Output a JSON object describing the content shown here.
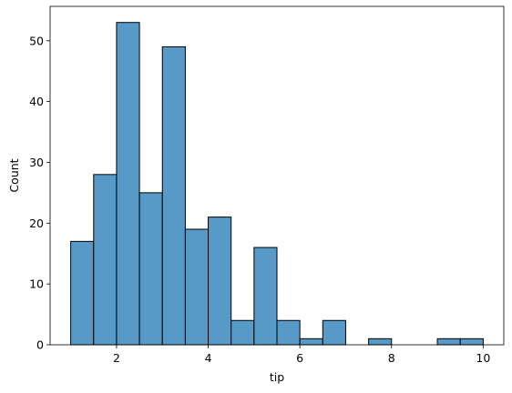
{
  "chart_data": {
    "type": "bar",
    "subtype": "histogram",
    "title": "",
    "xlabel": "tip",
    "ylabel": "Count",
    "xlim": [
      0.55,
      10.45
    ],
    "ylim": [
      0,
      55.65
    ],
    "xticks": [
      2,
      4,
      6,
      8,
      10
    ],
    "yticks": [
      0,
      10,
      20,
      30,
      40,
      50
    ],
    "bin_edges": [
      1.0,
      1.5,
      2.0,
      2.5,
      3.0,
      3.5,
      4.0,
      4.5,
      5.0,
      5.5,
      6.0,
      6.5,
      7.0,
      7.5,
      8.0,
      8.5,
      9.0,
      9.5,
      10.0
    ],
    "counts": [
      17,
      28,
      53,
      25,
      49,
      19,
      21,
      4,
      16,
      4,
      1,
      4,
      0,
      1,
      0,
      0,
      1,
      1
    ],
    "bar_color": "#5799c7",
    "edge_color": "#000000",
    "grid": false
  }
}
